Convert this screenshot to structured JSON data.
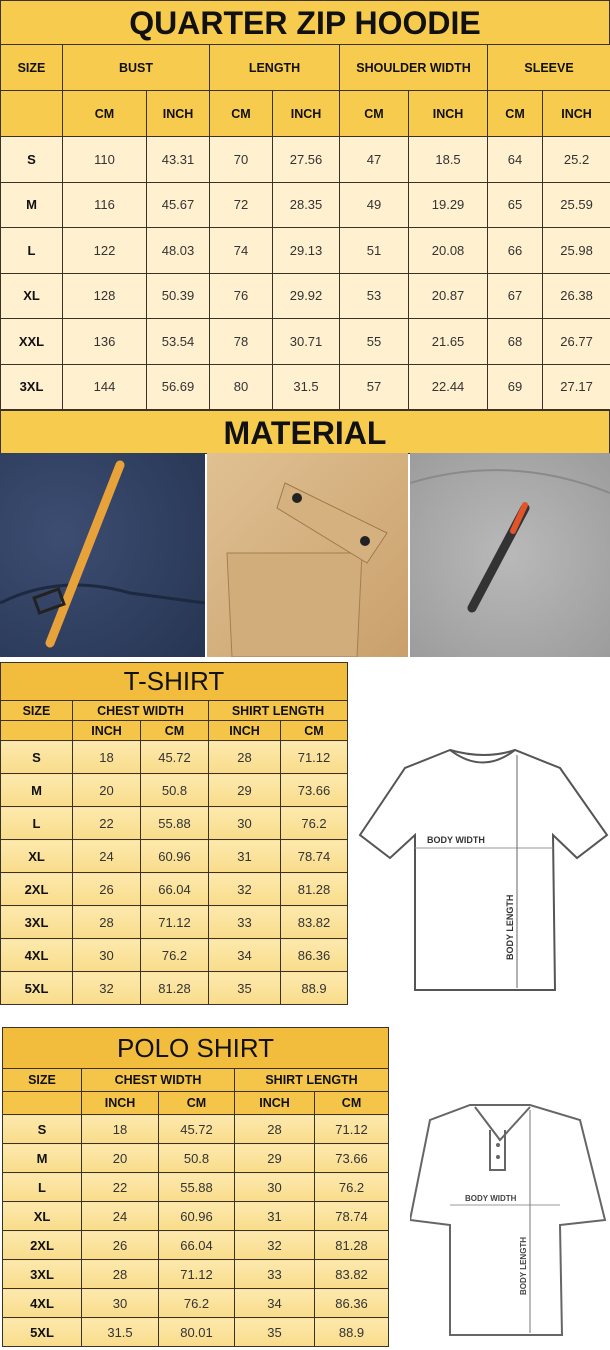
{
  "hoodie": {
    "title": "QUARTER ZIP HOODIE",
    "headers": [
      "SIZE",
      "BUST",
      "LENGTH",
      "SHOULDER WIDTH",
      "SLEEVE"
    ],
    "subheaders": [
      "CM",
      "INCH",
      "CM",
      "INCH",
      "CM",
      "INCH",
      "CM",
      "INCH"
    ],
    "rows": [
      [
        "S",
        "110",
        "43.31",
        "70",
        "27.56",
        "47",
        "18.5",
        "64",
        "25.2"
      ],
      [
        "M",
        "116",
        "45.67",
        "72",
        "28.35",
        "49",
        "19.29",
        "65",
        "25.59"
      ],
      [
        "L",
        "122",
        "48.03",
        "74",
        "29.13",
        "51",
        "20.08",
        "66",
        "25.98"
      ],
      [
        "XL",
        "128",
        "50.39",
        "76",
        "29.92",
        "53",
        "20.87",
        "67",
        "26.38"
      ],
      [
        "XXL",
        "136",
        "53.54",
        "78",
        "30.71",
        "55",
        "21.65",
        "68",
        "26.77"
      ],
      [
        "3XL",
        "144",
        "56.69",
        "80",
        "31.5",
        "57",
        "22.44",
        "69",
        "27.17"
      ]
    ]
  },
  "material": {
    "title": "MATERIAL",
    "photos": [
      "navy-pocket-with-orange-zipper-pull",
      "khaki-flap-pocket-with-snaps",
      "grey-sleeve-with-zip-pocket"
    ]
  },
  "tshirt": {
    "title": "T-SHIRT",
    "headers": [
      "SIZE",
      "CHEST WIDTH",
      "SHIRT LENGTH"
    ],
    "subheaders": [
      "INCH",
      "CM",
      "INCH",
      "CM"
    ],
    "rows": [
      [
        "S",
        "18",
        "45.72",
        "28",
        "71.12"
      ],
      [
        "M",
        "20",
        "50.8",
        "29",
        "73.66"
      ],
      [
        "L",
        "22",
        "55.88",
        "30",
        "76.2"
      ],
      [
        "XL",
        "24",
        "60.96",
        "31",
        "78.74"
      ],
      [
        "2XL",
        "26",
        "66.04",
        "32",
        "81.28"
      ],
      [
        "3XL",
        "28",
        "71.12",
        "33",
        "83.82"
      ],
      [
        "4XL",
        "30",
        "76.2",
        "34",
        "86.36"
      ],
      [
        "5XL",
        "32",
        "81.28",
        "35",
        "88.9"
      ]
    ],
    "diagram": {
      "width_label": "BODY WIDTH",
      "length_label": "BODY LENGTH"
    }
  },
  "polo": {
    "title": "POLO SHIRT",
    "headers": [
      "SIZE",
      "CHEST WIDTH",
      "SHIRT LENGTH"
    ],
    "subheaders": [
      "INCH",
      "CM",
      "INCH",
      "CM"
    ],
    "rows": [
      [
        "S",
        "18",
        "45.72",
        "28",
        "71.12"
      ],
      [
        "M",
        "20",
        "50.8",
        "29",
        "73.66"
      ],
      [
        "L",
        "22",
        "55.88",
        "30",
        "76.2"
      ],
      [
        "XL",
        "24",
        "60.96",
        "31",
        "78.74"
      ],
      [
        "2XL",
        "26",
        "66.04",
        "32",
        "81.28"
      ],
      [
        "3XL",
        "28",
        "71.12",
        "33",
        "83.82"
      ],
      [
        "4XL",
        "30",
        "76.2",
        "34",
        "86.36"
      ],
      [
        "5XL",
        "31.5",
        "80.01",
        "35",
        "88.9"
      ]
    ],
    "diagram": {
      "width_label": "BODY WIDTH",
      "length_label": "BODY LENGTH"
    }
  },
  "colors": {
    "header": "#f7cb4d",
    "cell": "#fff1cf",
    "border": "#3a3226"
  }
}
